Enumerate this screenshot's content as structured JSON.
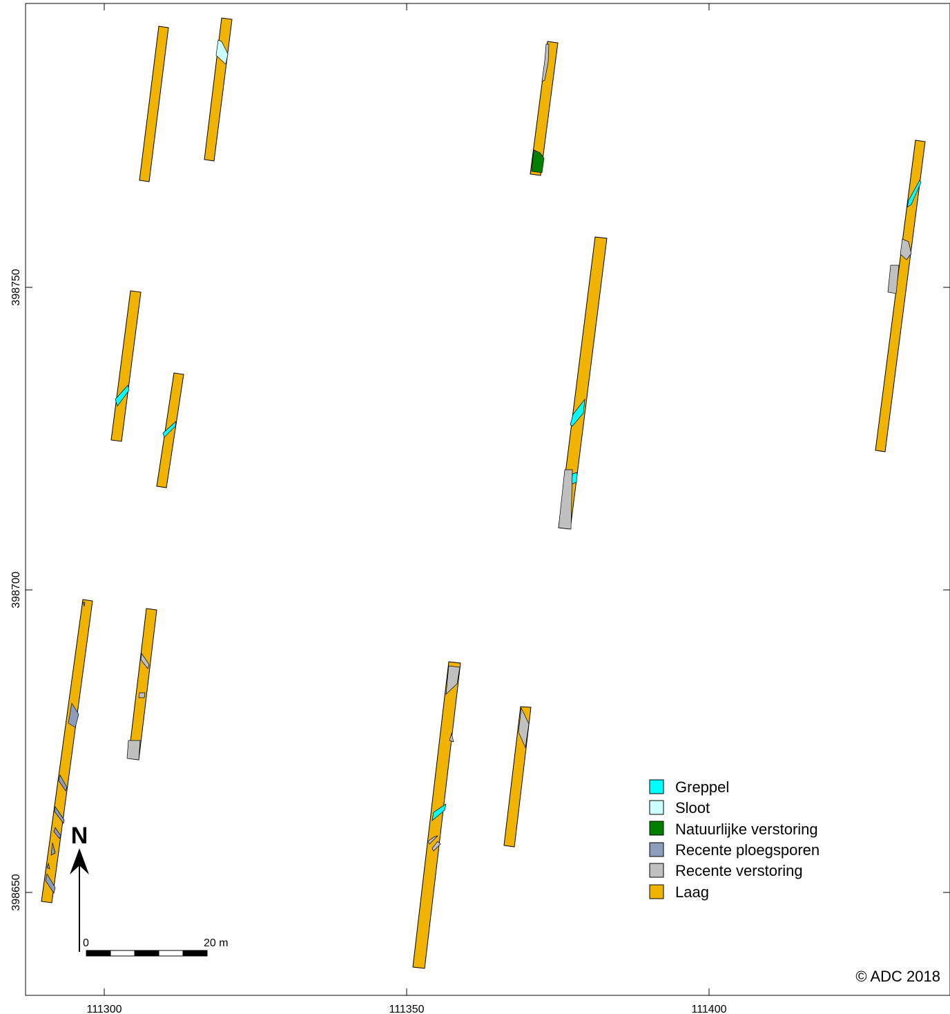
{
  "colors": {
    "greppel": "#00ffff",
    "sloot": "#ccffff",
    "natuurlijke_verstoring": "#008000",
    "recente_ploegsporen": "#8c9cbd",
    "recente_verstoring": "#c0c0c0",
    "laag": "#f0b400"
  },
  "axes": {
    "x_ticks": [
      "111300",
      "111350",
      "111400"
    ],
    "y_ticks": [
      "398750",
      "398700",
      "398650"
    ]
  },
  "legend": {
    "items": [
      {
        "label": "Greppel",
        "color_key": "greppel"
      },
      {
        "label": "Sloot",
        "color_key": "sloot"
      },
      {
        "label": "Natuurlijke verstoring",
        "color_key": "natuurlijke_verstoring"
      },
      {
        "label": "Recente ploegsporen",
        "color_key": "recente_ploegsporen"
      },
      {
        "label": "Recente verstoring",
        "color_key": "recente_verstoring"
      },
      {
        "label": "Laag",
        "color_key": "laag"
      }
    ]
  },
  "north_arrow": {
    "label": "N"
  },
  "scale_bar": {
    "start_label": "0",
    "end_label": "20 m"
  },
  "copyright": "© ADC 2018"
}
